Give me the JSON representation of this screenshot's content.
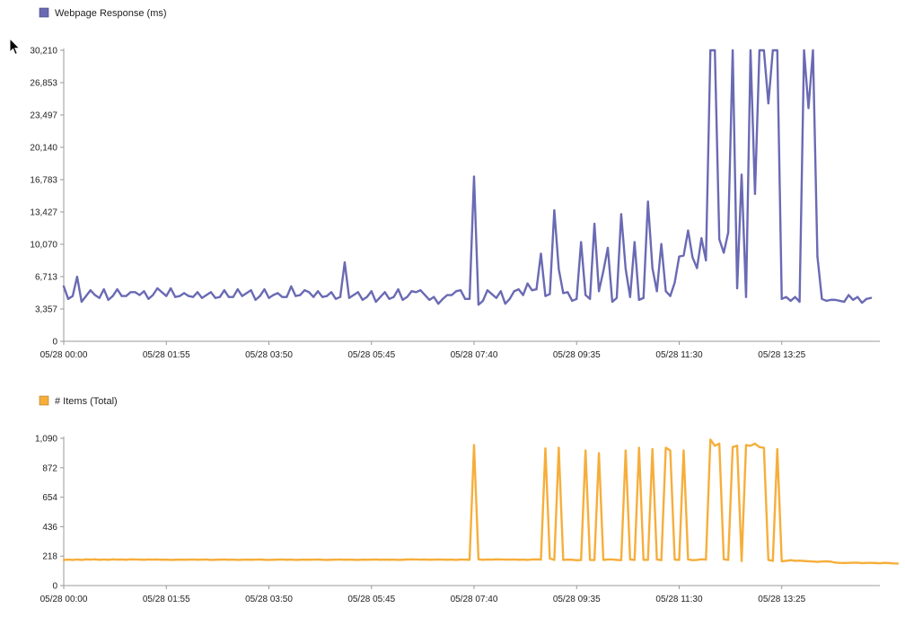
{
  "chart_data": [
    {
      "type": "line",
      "legend": "Webpage Response (ms)",
      "color": "#6A6AB4",
      "ylim": [
        0,
        30210
      ],
      "y_ticks": [
        "0",
        "3,357",
        "6,713",
        "10,070",
        "13,427",
        "16,783",
        "20,140",
        "23,497",
        "26,853",
        "30,210"
      ],
      "y_tick_values": [
        0,
        3357,
        6713,
        10070,
        13427,
        16783,
        20140,
        23497,
        26853,
        30210
      ],
      "x_ticks": [
        "05/28 00:00",
        "05/28 01:55",
        "05/28 03:50",
        "05/28 05:45",
        "05/28 07:40",
        "05/28 09:35",
        "05/28 11:30",
        "05/28 13:25"
      ],
      "x_range_minutes": [
        0,
        915
      ],
      "series": [
        {
          "x_step_minutes": 5,
          "values": [
            5700,
            4400,
            4700,
            6700,
            4100,
            4700,
            5300,
            4800,
            4500,
            5400,
            4300,
            4700,
            5400,
            4700,
            4700,
            5100,
            5100,
            4800,
            5200,
            4400,
            4800,
            5500,
            5100,
            4700,
            5500,
            4600,
            4700,
            5000,
            4700,
            4600,
            5100,
            4500,
            4800,
            5100,
            4500,
            4600,
            5300,
            4600,
            4600,
            5400,
            4700,
            5000,
            5300,
            4300,
            4700,
            5400,
            4500,
            4800,
            5000,
            4600,
            4600,
            5700,
            4700,
            4800,
            5300,
            5100,
            4600,
            5200,
            4600,
            4700,
            5100,
            4400,
            4600,
            8200,
            4500,
            4800,
            5100,
            4300,
            4600,
            5200,
            4100,
            4600,
            5100,
            4400,
            4600,
            5400,
            4300,
            4600,
            5200,
            5100,
            5300,
            4800,
            4300,
            4600,
            3900,
            4400,
            4800,
            4800,
            5200,
            5300,
            4400,
            4400,
            17100,
            3800,
            4200,
            5300,
            4900,
            4500,
            5200,
            3900,
            4400,
            5200,
            5400,
            4800,
            6000,
            5300,
            5400,
            9100,
            4700,
            4900,
            13600,
            7500,
            5000,
            5100,
            4200,
            4400,
            10300,
            4800,
            4400,
            12200,
            5200,
            7300,
            9700,
            4100,
            4500,
            13200,
            7500,
            4600,
            10300,
            4300,
            4500,
            14500,
            7600,
            5200,
            10100,
            5200,
            4700,
            6100,
            8800,
            8900,
            11500,
            8700,
            7600,
            10700,
            8400,
            30210,
            30210,
            10600,
            9200,
            11300,
            30210,
            5500,
            17300,
            4600,
            30210,
            15300,
            30210,
            30210,
            24700,
            30210,
            30210,
            4400,
            4600,
            4200,
            4600,
            4100,
            30210,
            24200,
            30210,
            8800,
            4400,
            4200,
            4300,
            4300,
            4200,
            4100,
            4800,
            4300,
            4600,
            4000,
            4400,
            4500
          ]
        }
      ]
    },
    {
      "type": "line",
      "legend": "# Items (Total)",
      "color": "#F6AE3B",
      "ylim": [
        0,
        1090
      ],
      "y_ticks": [
        "0",
        "218",
        "436",
        "654",
        "872",
        "1,090"
      ],
      "y_tick_values": [
        0,
        218,
        436,
        654,
        872,
        1090
      ],
      "x_ticks": [
        "05/28 00:00",
        "05/28 01:55",
        "05/28 03:50",
        "05/28 05:45",
        "05/28 07:40",
        "05/28 09:35",
        "05/28 11:30",
        "05/28 13:25"
      ],
      "x_range_minutes": [
        0,
        915
      ],
      "series": [
        {
          "x_step_minutes": 5,
          "values": [
            190,
            192,
            190,
            193,
            190,
            194,
            192,
            194,
            191,
            193,
            191,
            194,
            192,
            193,
            191,
            194,
            193,
            192,
            191,
            193,
            192,
            193,
            191,
            192,
            190,
            191,
            192,
            191,
            192,
            193,
            191,
            192,
            193,
            190,
            191,
            192,
            193,
            191,
            192,
            190,
            191,
            192,
            191,
            192,
            193,
            191,
            190,
            191,
            192,
            193,
            191,
            192,
            190,
            191,
            192,
            191,
            192,
            193,
            191,
            190,
            191,
            192,
            193,
            191,
            192,
            191,
            190,
            192,
            191,
            192,
            193,
            191,
            192,
            191,
            192,
            190,
            191,
            193,
            194,
            193,
            192,
            193,
            191,
            192,
            193,
            192,
            191,
            192,
            190,
            193,
            192,
            191,
            1040,
            194,
            191,
            193,
            192,
            194,
            193,
            192,
            192,
            193,
            191,
            192,
            190,
            193,
            194,
            192,
            1015,
            200,
            190,
            1020,
            190,
            192,
            191,
            188,
            189,
            1000,
            190,
            189,
            980,
            190,
            193,
            193,
            190,
            188,
            1000,
            193,
            190,
            1020,
            191,
            190,
            1010,
            193,
            188,
            1020,
            1000,
            192,
            190,
            1000,
            193,
            188,
            190,
            195,
            192,
            1080,
            1035,
            1050,
            195,
            190,
            1025,
            1035,
            182,
            1040,
            1035,
            1050,
            1025,
            1020,
            190,
            183,
            1010,
            180,
            183,
            188,
            183,
            185,
            182,
            180,
            178,
            176,
            178,
            180,
            177,
            170,
            168,
            167,
            168,
            169,
            170,
            166,
            168,
            168,
            167,
            165,
            168,
            167,
            164,
            163
          ]
        }
      ]
    }
  ]
}
